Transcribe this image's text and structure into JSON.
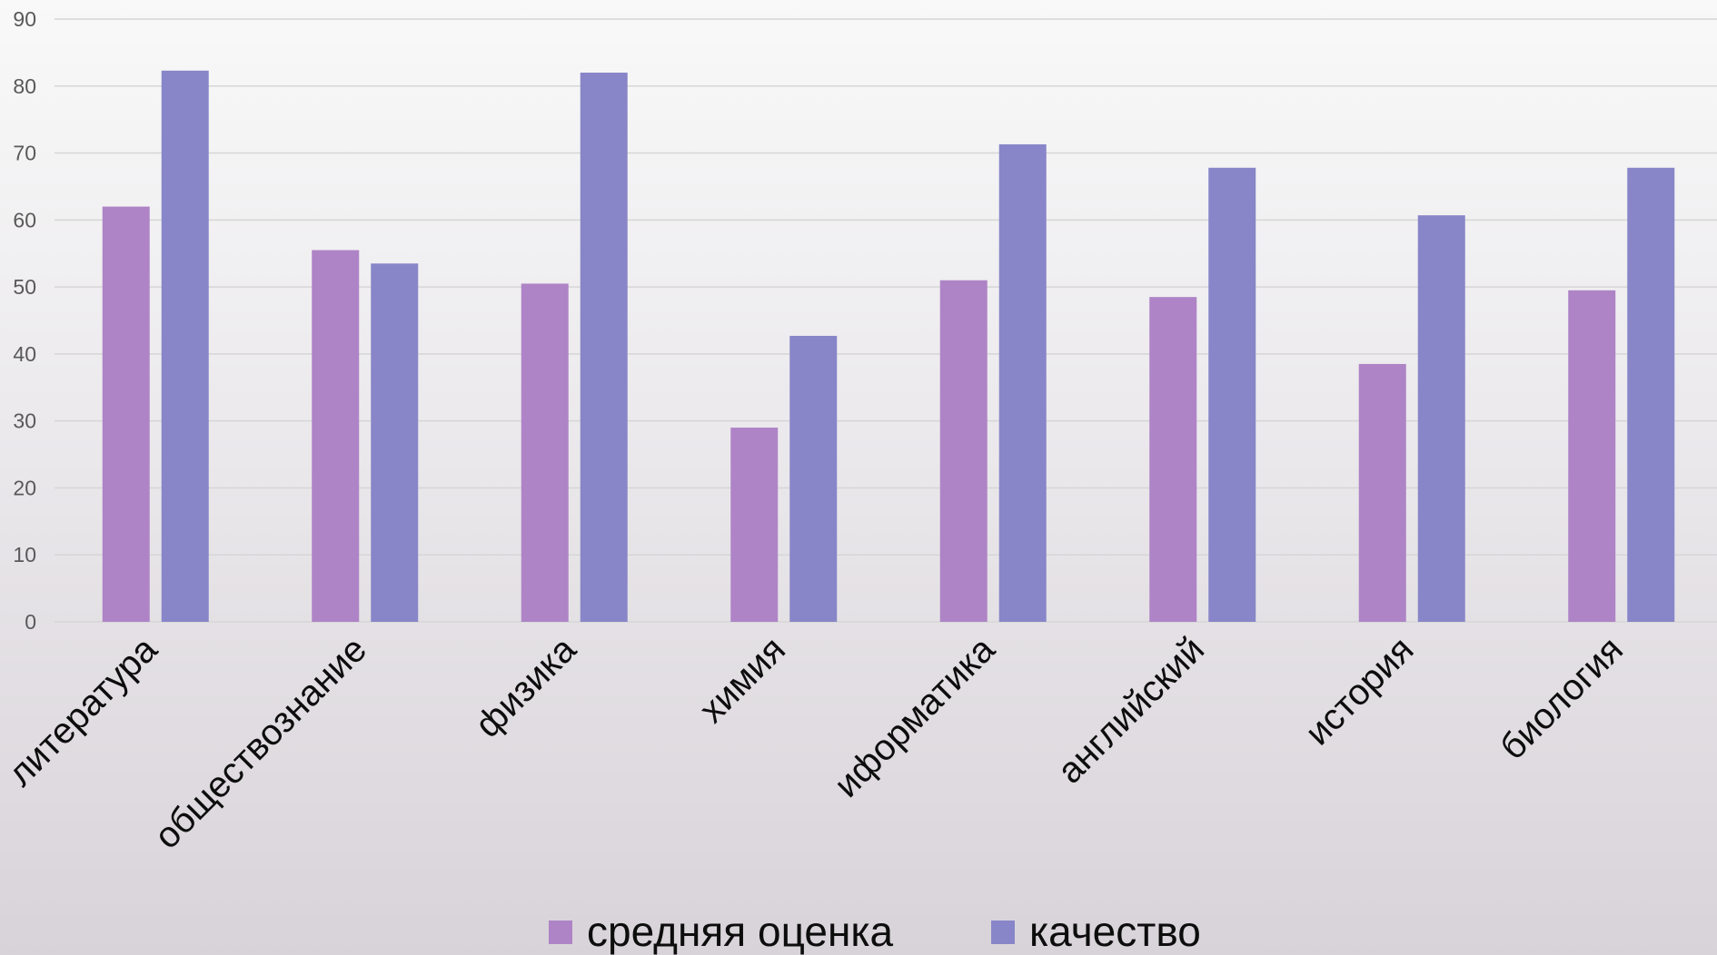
{
  "chart_data": {
    "type": "bar",
    "title": "",
    "xlabel": "",
    "ylabel": "",
    "categories": [
      "литература",
      "обществознание",
      "физика",
      "химия",
      "иформатика",
      "английский",
      "история",
      "биология"
    ],
    "series": [
      {
        "name": "средняя оценка",
        "color": "#ae84c6",
        "values": [
          62,
          55.5,
          50.5,
          29,
          51,
          48.5,
          38.5,
          49.5
        ]
      },
      {
        "name": "качество",
        "color": "#8886c8",
        "values": [
          82.3,
          53.5,
          82,
          42.7,
          71.3,
          67.8,
          60.7,
          67.8
        ]
      }
    ],
    "ylim": [
      0,
      90
    ],
    "yticks": [
      0,
      10,
      20,
      30,
      40,
      50,
      60,
      70,
      80,
      90
    ],
    "grid": true,
    "legend_position": "bottom"
  }
}
